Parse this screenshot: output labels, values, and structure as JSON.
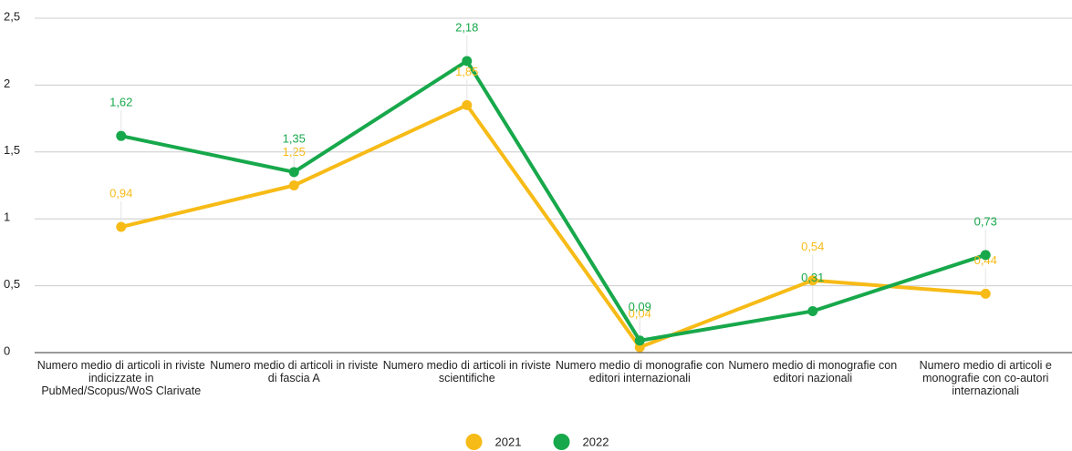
{
  "chart_data": {
    "type": "line",
    "categories": [
      "Numero medio di articoli in riviste indicizzate in PubMed/Scopus/WoS Clarivate",
      "Numero medio di articoli in riviste di fascia A",
      "Numero medio di articoli in riviste scientifiche",
      "Numero medio di monografie con editori internazionali",
      "Numero medio di monografie con editori nazionali",
      "Numero medio di articoli e monografie con co-autori internazionali"
    ],
    "series": [
      {
        "name": "2021",
        "color": "#f7bb17",
        "values": [
          0.94,
          1.25,
          1.85,
          0.04,
          0.54,
          0.44
        ],
        "value_labels": [
          "0,94",
          "1,25",
          "1,85",
          "0,04",
          "0,54",
          "0,44"
        ]
      },
      {
        "name": "2022",
        "color": "#17a84b",
        "values": [
          1.62,
          1.35,
          2.18,
          0.09,
          0.31,
          0.73
        ],
        "value_labels": [
          "1,62",
          "1,35",
          "2,18",
          "0,09",
          "0,31",
          "0,73"
        ]
      }
    ],
    "ylim": [
      0,
      2.5
    ],
    "yticks": [
      0,
      {
        "value": 0.5,
        "label": "0,5"
      },
      1,
      {
        "value": 1.5,
        "label": "1,5"
      },
      2,
      {
        "value": 2.5,
        "label": "2,5"
      }
    ],
    "grid": true,
    "legend": "bottom"
  }
}
